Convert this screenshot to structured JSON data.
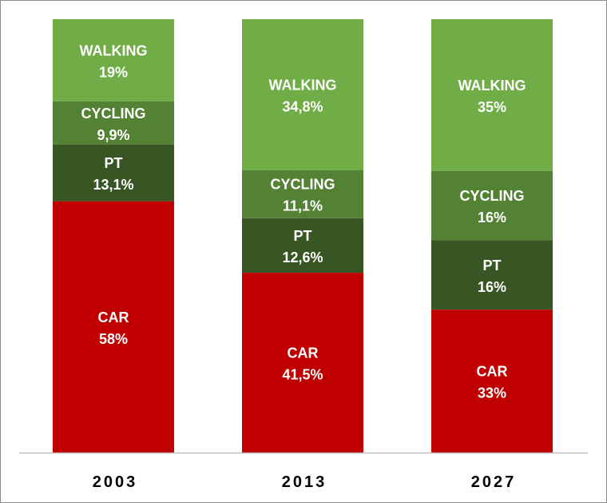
{
  "chart_data": {
    "type": "bar",
    "stacked": true,
    "percent_stacked": true,
    "categories": [
      "2003",
      "2013",
      "2027"
    ],
    "series": [
      {
        "name": "CAR",
        "values": [
          58,
          41.5,
          33
        ],
        "labels": [
          "58%",
          "41,5%",
          "33%"
        ],
        "color": "#c00000"
      },
      {
        "name": "PT",
        "values": [
          13.1,
          12.6,
          16
        ],
        "labels": [
          "13,1%",
          "12,6%",
          "16%"
        ],
        "color": "#375623"
      },
      {
        "name": "CYCLING",
        "values": [
          9.9,
          11.1,
          16
        ],
        "labels": [
          "9,9%",
          "11,1%",
          "16%"
        ],
        "color": "#548235"
      },
      {
        "name": "WALKING",
        "values": [
          19,
          34.8,
          35
        ],
        "labels": [
          "19%",
          "34,8%",
          "35%"
        ],
        "color": "#70ad47"
      }
    ],
    "ylim": [
      0,
      100
    ],
    "grid": false,
    "legend": "none"
  }
}
